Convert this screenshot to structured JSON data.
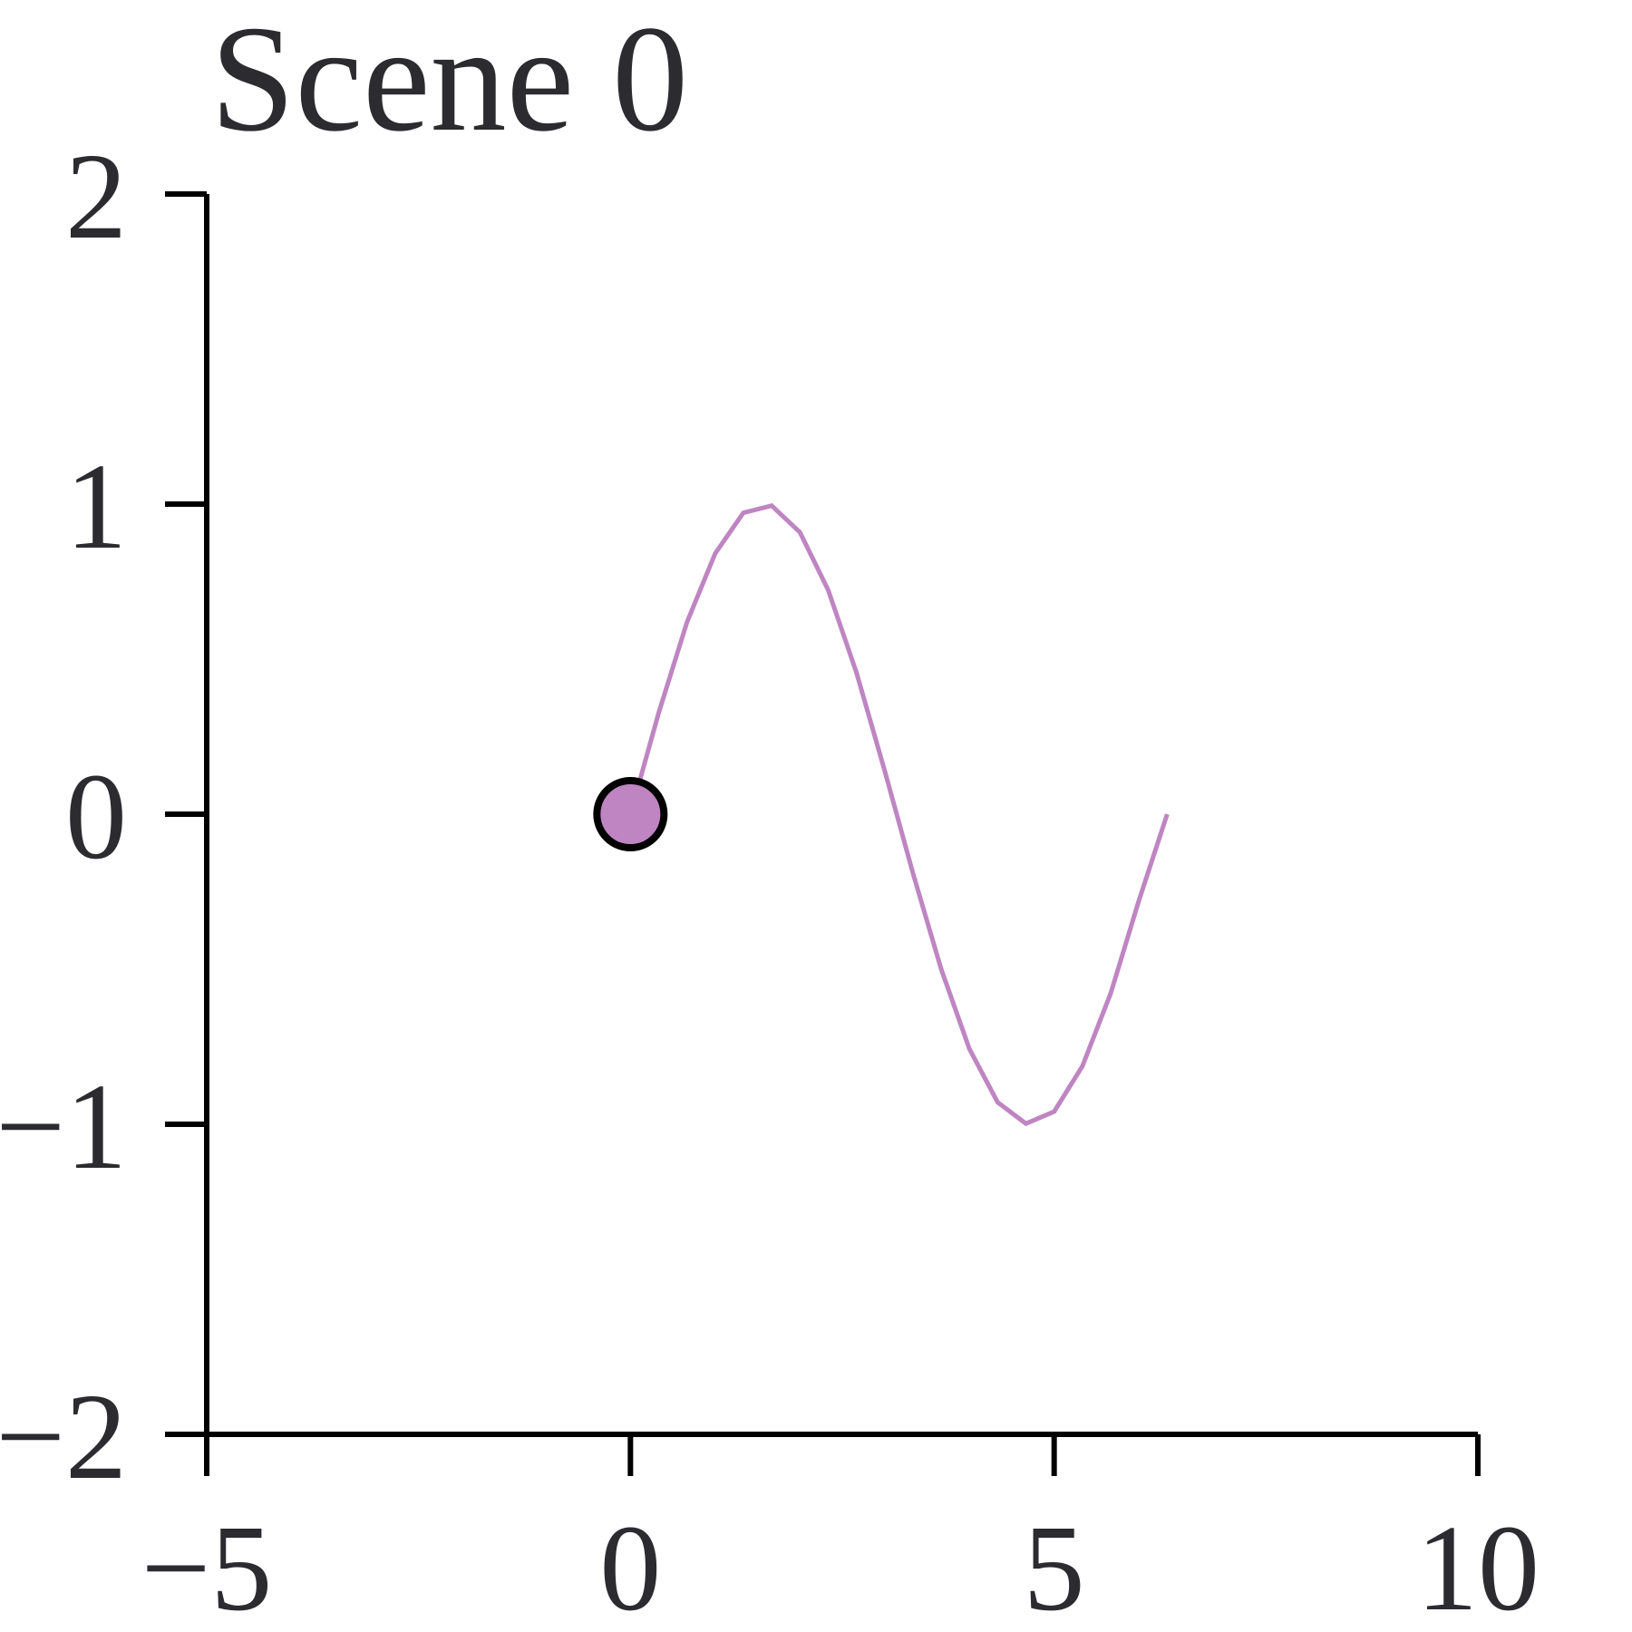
{
  "chart_data": {
    "type": "line",
    "title": "Scene 0",
    "xlabel": "",
    "ylabel": "",
    "xlim": [
      -5,
      10
    ],
    "ylim": [
      -2,
      2
    ],
    "x_ticks": [
      -5,
      0,
      5,
      10
    ],
    "y_ticks": [
      -2,
      -1,
      0,
      1,
      2
    ],
    "x_tick_labels": [
      "−5",
      "0",
      "5",
      "10"
    ],
    "y_tick_labels": [
      "−2",
      "−1",
      "0",
      "1",
      "2"
    ],
    "grid": false,
    "legend": "none",
    "series": [
      {
        "color": "#bf85c2",
        "x": [
          0.0,
          0.333,
          0.667,
          1.0,
          1.333,
          1.667,
          2.0,
          2.333,
          2.667,
          3.0,
          3.333,
          3.667,
          4.0,
          4.333,
          4.667,
          5.0,
          5.333,
          5.667,
          6.0,
          6.333
        ],
        "y": [
          0.0,
          0.327,
          0.619,
          0.841,
          0.972,
          0.995,
          0.909,
          0.723,
          0.457,
          0.141,
          -0.19,
          -0.5,
          -0.757,
          -0.929,
          -0.998,
          -0.959,
          -0.813,
          -0.578,
          -0.279,
          0.0
        ]
      }
    ],
    "marker": {
      "x": 0,
      "y": 0,
      "fill": "#bf85c2",
      "stroke": "#000000"
    }
  }
}
